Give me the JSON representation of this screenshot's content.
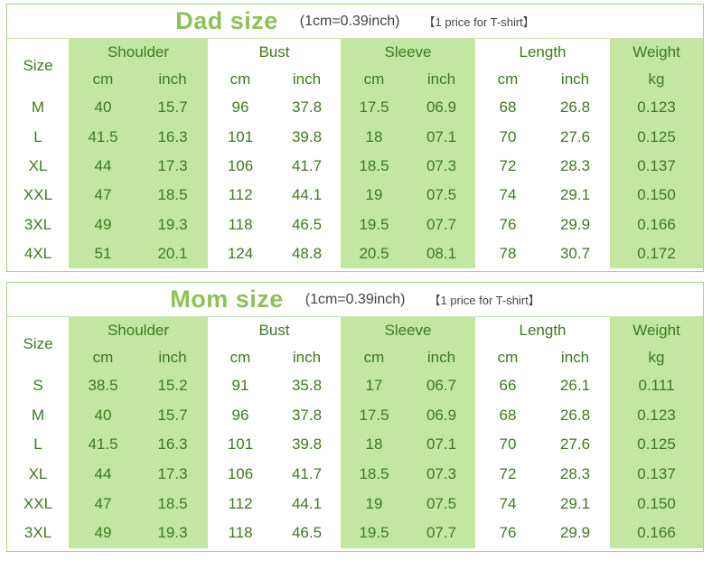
{
  "tables": [
    {
      "key": "dad",
      "title": "Dad size",
      "unit_note": "(1cm=0.39inch)",
      "price_note": "【1 price for T-shirt】",
      "header": {
        "size": "Size",
        "shoulder": "Shoulder",
        "bust": "Bust",
        "sleeve": "Sleeve",
        "length": "Length",
        "weight": "Weight",
        "cm": "cm",
        "inch": "inch",
        "kg": "kg"
      },
      "rows": [
        [
          "M",
          "40",
          "15.7",
          "96",
          "37.8",
          "17.5",
          "06.9",
          "68",
          "26.8",
          "0.123"
        ],
        [
          "L",
          "41.5",
          "16.3",
          "101",
          "39.8",
          "18",
          "07.1",
          "70",
          "27.6",
          "0.125"
        ],
        [
          "XL",
          "44",
          "17.3",
          "106",
          "41.7",
          "18.5",
          "07.3",
          "72",
          "28.3",
          "0.137"
        ],
        [
          "XXL",
          "47",
          "18.5",
          "112",
          "44.1",
          "19",
          "07.5",
          "74",
          "29.1",
          "0.150"
        ],
        [
          "3XL",
          "49",
          "19.3",
          "118",
          "46.5",
          "19.5",
          "07.7",
          "76",
          "29.9",
          "0.166"
        ],
        [
          "4XL",
          "51",
          "20.1",
          "124",
          "48.8",
          "20.5",
          "08.1",
          "78",
          "30.7",
          "0.172"
        ]
      ]
    },
    {
      "key": "mom",
      "title": "Mom size",
      "unit_note": "(1cm=0.39inch)",
      "price_note": "【1 price for T-shirt】",
      "header": {
        "size": "Size",
        "shoulder": "Shoulder",
        "bust": "Bust",
        "sleeve": "Sleeve",
        "length": "Length",
        "weight": "Weight",
        "cm": "cm",
        "inch": "inch",
        "kg": "kg"
      },
      "rows": [
        [
          "S",
          "38.5",
          "15.2",
          "91",
          "35.8",
          "17",
          "06.7",
          "66",
          "26.1",
          "0.111"
        ],
        [
          "M",
          "40",
          "15.7",
          "96",
          "37.8",
          "17.5",
          "06.9",
          "68",
          "26.8",
          "0.123"
        ],
        [
          "L",
          "41.5",
          "16.3",
          "101",
          "39.8",
          "18",
          "07.1",
          "70",
          "27.6",
          "0.125"
        ],
        [
          "XL",
          "44",
          "17.3",
          "106",
          "41.7",
          "18.5",
          "07.3",
          "72",
          "28.3",
          "0.137"
        ],
        [
          "XXL",
          "47",
          "18.5",
          "112",
          "44.1",
          "19",
          "07.5",
          "74",
          "29.1",
          "0.150"
        ],
        [
          "3XL",
          "49",
          "19.3",
          "118",
          "46.5",
          "19.5",
          "07.7",
          "76",
          "29.9",
          "0.166"
        ]
      ]
    }
  ]
}
